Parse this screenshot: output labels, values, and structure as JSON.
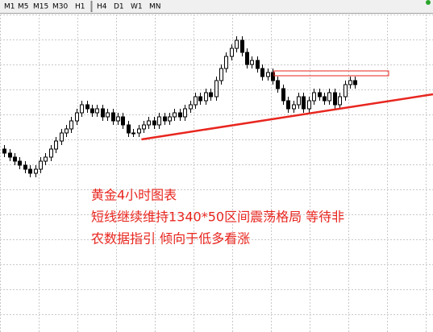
{
  "toolbar": [
    "M1",
    "M5",
    "M15",
    "M30",
    "H1",
    "H4",
    "D1",
    "W1",
    "MN"
  ],
  "chart_data": {
    "type": "candlestick",
    "annotation": [
      "黄金4小时图表",
      "短线继续维持1340*50区间震荡格局 等待非",
      "农数据指引    倾向于低多看涨"
    ],
    "xlim": [
      -0.8,
      83.1
    ],
    "ylim": [
      1292,
      1370
    ],
    "up_color": "#ffffff",
    "down_color": "#000000",
    "line_color": "#e8261f",
    "open": [
      1337,
      1336,
      1335,
      1334,
      1333,
      1332,
      1331,
      1332,
      1334,
      1335,
      1337,
      1339,
      1341,
      1342,
      1344,
      1346,
      1348,
      1347,
      1346,
      1347,
      1345,
      1346,
      1344,
      1345,
      1343,
      1341,
      1341,
      1342,
      1343,
      1344,
      1343,
      1345,
      1344,
      1345,
      1346,
      1345,
      1347,
      1348,
      1350,
      1349,
      1351,
      1350,
      1354,
      1357,
      1360,
      1362,
      1364,
      1361,
      1358,
      1359,
      1357,
      1355,
      1356,
      1354,
      1352,
      1349,
      1347,
      1348,
      1350,
      1347,
      1349,
      1351,
      1350,
      1349,
      1351,
      1348,
      1350,
      1353,
      1354
    ],
    "high": [
      1338,
      1337,
      1336,
      1335,
      1334,
      1333,
      1333,
      1335,
      1336,
      1338,
      1340,
      1342,
      1343,
      1345,
      1347,
      1349,
      1349,
      1348,
      1348,
      1348,
      1347,
      1347,
      1346,
      1346,
      1344,
      1342,
      1343,
      1344,
      1345,
      1345,
      1346,
      1346,
      1346,
      1347,
      1347,
      1348,
      1349,
      1351,
      1351,
      1352,
      1352,
      1355,
      1358,
      1361,
      1363,
      1365,
      1365,
      1362,
      1360,
      1360,
      1358,
      1357,
      1357,
      1355,
      1353,
      1350,
      1349,
      1351,
      1351,
      1350,
      1352,
      1352,
      1351,
      1352,
      1352,
      1351,
      1354,
      1355,
      1355
    ],
    "low": [
      1335,
      1334,
      1333,
      1332,
      1331,
      1330,
      1330,
      1331,
      1333,
      1334,
      1336,
      1338,
      1340,
      1341,
      1343,
      1345,
      1346,
      1345,
      1345,
      1344,
      1344,
      1343,
      1343,
      1342,
      1340,
      1340,
      1340,
      1341,
      1342,
      1342,
      1342,
      1343,
      1343,
      1344,
      1344,
      1344,
      1346,
      1347,
      1348,
      1348,
      1349,
      1349,
      1353,
      1356,
      1359,
      1361,
      1360,
      1357,
      1357,
      1356,
      1354,
      1354,
      1353,
      1351,
      1348,
      1346,
      1346,
      1347,
      1346,
      1346,
      1348,
      1349,
      1348,
      1348,
      1347,
      1347,
      1349,
      1352,
      1352
    ],
    "close": [
      1336,
      1335,
      1334,
      1333,
      1332,
      1331,
      1332,
      1334,
      1335,
      1337,
      1339,
      1341,
      1342,
      1344,
      1346,
      1348,
      1347,
      1346,
      1347,
      1345,
      1346,
      1344,
      1345,
      1343,
      1341,
      1341,
      1342,
      1343,
      1344,
      1343,
      1345,
      1344,
      1345,
      1346,
      1345,
      1347,
      1348,
      1350,
      1349,
      1351,
      1350,
      1354,
      1357,
      1360,
      1362,
      1364,
      1361,
      1358,
      1359,
      1357,
      1355,
      1356,
      1354,
      1352,
      1349,
      1347,
      1348,
      1350,
      1347,
      1349,
      1351,
      1350,
      1349,
      1351,
      1348,
      1350,
      1353,
      1354,
      1353
    ],
    "box": {
      "x": [
        52.3,
        74.5
      ],
      "values": [
        1355.2,
        1356.4
      ]
    },
    "trendline": {
      "x": [
        26.6,
        83.1
      ],
      "values": [
        1339.4,
        1350.6
      ]
    }
  }
}
